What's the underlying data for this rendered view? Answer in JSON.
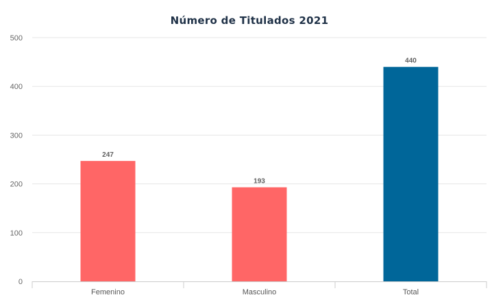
{
  "chart_data": {
    "type": "bar",
    "title": "Número de Titulados 2021",
    "categories": [
      "Femenino",
      "Masculino",
      "Total"
    ],
    "values": [
      247,
      193,
      440
    ],
    "colors": [
      "#ff6666",
      "#ff6666",
      "#006699"
    ],
    "ylim": [
      0,
      500
    ],
    "yticks": [
      "0",
      "100",
      "200",
      "300",
      "400",
      "500"
    ],
    "grid": true,
    "data_labels": true
  }
}
